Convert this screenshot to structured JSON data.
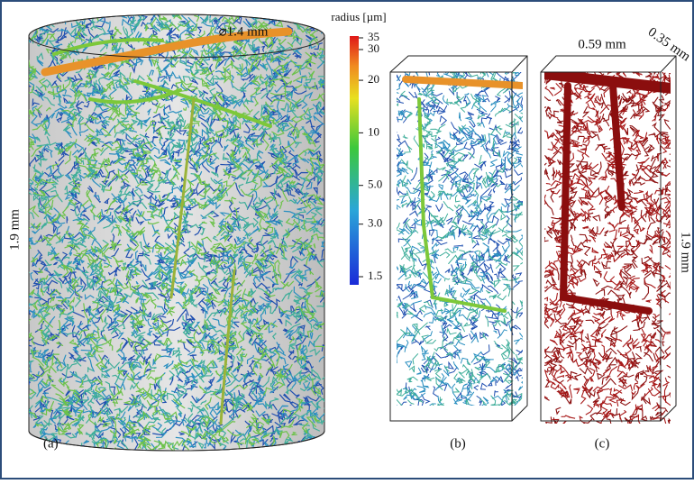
{
  "panels": [
    {
      "label": "(a)",
      "diameter": "⌀1.4 mm",
      "height": "1.9 mm"
    },
    {
      "label": "(b)"
    },
    {
      "label": "(c)",
      "width": "0.59 mm",
      "depth": "0.35 mm",
      "height": "1.9 mm"
    }
  ],
  "colorbar": {
    "title": "radius [µm]",
    "scale": "log",
    "lim": [
      1.5,
      35
    ],
    "ticks": [
      35,
      30,
      20,
      10,
      {
        "value": 5,
        "label": "5.0"
      },
      {
        "value": 3,
        "label": "3.0"
      },
      1.5
    ]
  }
}
